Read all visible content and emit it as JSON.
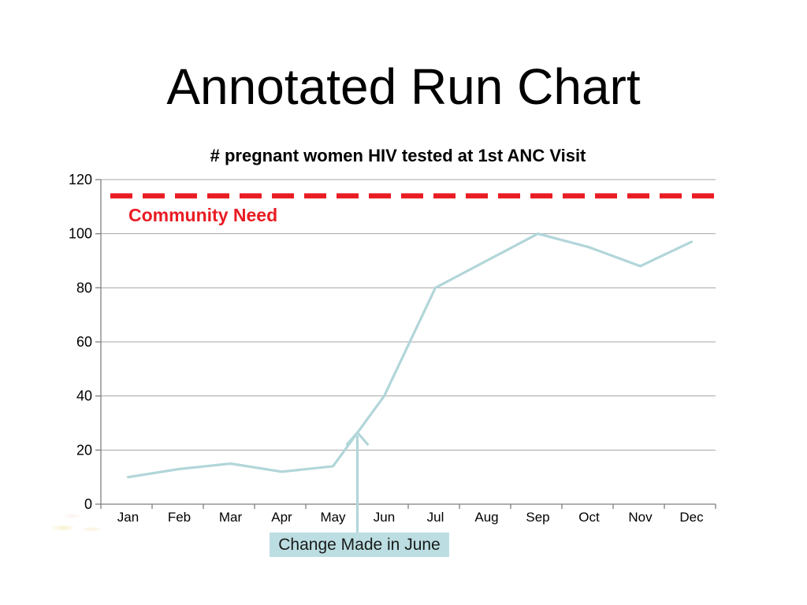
{
  "slide": {
    "title": "Annotated Run Chart"
  },
  "chart_data": {
    "type": "line",
    "title": "# pregnant women HIV tested at 1st ANC Visit",
    "categories": [
      "Jan",
      "Feb",
      "Mar",
      "Apr",
      "May",
      "Jun",
      "Jul",
      "Aug",
      "Sep",
      "Oct",
      "Nov",
      "Dec"
    ],
    "values": [
      10,
      13,
      15,
      12,
      14,
      40,
      80,
      90,
      100,
      95,
      88,
      97
    ],
    "xlabel": "",
    "ylabel": "",
    "ylim": [
      0,
      120
    ],
    "yticks": [
      0,
      20,
      40,
      60,
      80,
      100,
      120
    ],
    "grid": "horizontal",
    "legend": "none",
    "line_color": "#b2d6d9",
    "axis_color": "#7f7f7f",
    "gridline_color": "#a6a6a6",
    "reference_line": {
      "label": "Community Need",
      "value": 114,
      "color": "#e91c23",
      "style": "dashed"
    },
    "annotation": {
      "label": "Change Made in June",
      "box_color": "#bcdee2",
      "text_color": "#1a1a1a",
      "arrow": "points up from the label box to the data line between May and Jun"
    }
  }
}
